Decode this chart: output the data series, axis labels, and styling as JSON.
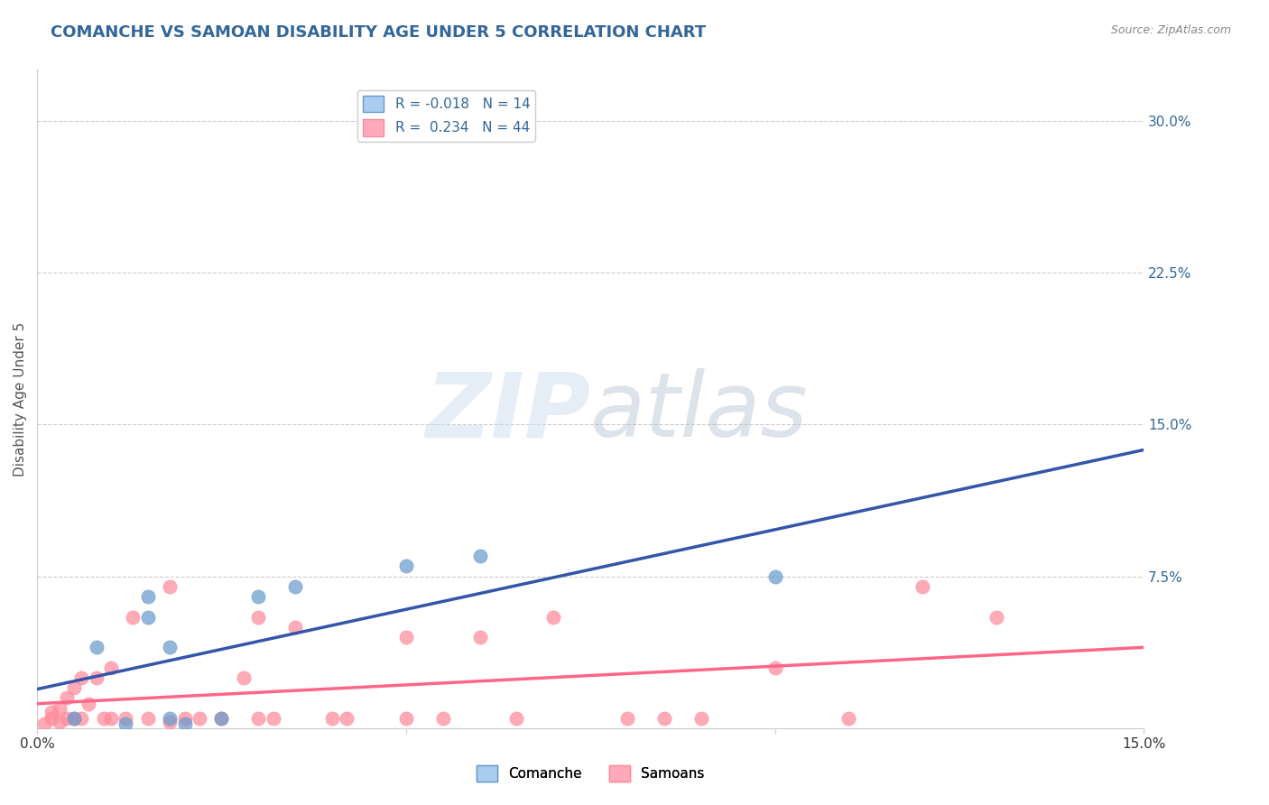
{
  "title": "COMANCHE VS SAMOAN DISABILITY AGE UNDER 5 CORRELATION CHART",
  "source": "Source: ZipAtlas.com",
  "ylabel": "Disability Age Under 5",
  "xlim": [
    0.0,
    0.15
  ],
  "ylim": [
    0.0,
    0.325
  ],
  "ytick_labels_right": [
    "30.0%",
    "22.5%",
    "15.0%",
    "7.5%"
  ],
  "ytick_positions_right": [
    0.3,
    0.225,
    0.15,
    0.075
  ],
  "comanche_R": -0.018,
  "comanche_N": 14,
  "samoan_R": 0.234,
  "samoan_N": 44,
  "comanche_color": "#6699CC",
  "samoan_color": "#FF8899",
  "comanche_line_color": "#3355AA",
  "samoan_line_color": "#FF6688",
  "background_color": "#ffffff",
  "grid_color": "#cccccc",
  "title_color": "#336699",
  "legend_box_color_comanche": "#AACCEE",
  "legend_box_color_samoan": "#FFAABB",
  "comanche_x": [
    0.005,
    0.008,
    0.012,
    0.015,
    0.015,
    0.018,
    0.018,
    0.02,
    0.025,
    0.03,
    0.035,
    0.05,
    0.06,
    0.1
  ],
  "comanche_y": [
    0.005,
    0.04,
    0.002,
    0.065,
    0.055,
    0.04,
    0.005,
    0.002,
    0.005,
    0.065,
    0.07,
    0.08,
    0.085,
    0.075
  ],
  "samoan_x": [
    0.001,
    0.002,
    0.002,
    0.003,
    0.003,
    0.004,
    0.004,
    0.005,
    0.005,
    0.006,
    0.006,
    0.007,
    0.008,
    0.009,
    0.01,
    0.01,
    0.012,
    0.013,
    0.015,
    0.018,
    0.018,
    0.02,
    0.022,
    0.025,
    0.028,
    0.03,
    0.03,
    0.032,
    0.035,
    0.04,
    0.042,
    0.05,
    0.05,
    0.055,
    0.06,
    0.065,
    0.07,
    0.08,
    0.085,
    0.09,
    0.1,
    0.11,
    0.12,
    0.13
  ],
  "samoan_y": [
    0.002,
    0.005,
    0.008,
    0.003,
    0.01,
    0.005,
    0.015,
    0.005,
    0.02,
    0.005,
    0.025,
    0.012,
    0.025,
    0.005,
    0.005,
    0.03,
    0.005,
    0.055,
    0.005,
    0.003,
    0.07,
    0.005,
    0.005,
    0.005,
    0.025,
    0.005,
    0.055,
    0.005,
    0.05,
    0.005,
    0.005,
    0.005,
    0.045,
    0.005,
    0.045,
    0.005,
    0.055,
    0.005,
    0.005,
    0.005,
    0.03,
    0.005,
    0.07,
    0.055
  ]
}
